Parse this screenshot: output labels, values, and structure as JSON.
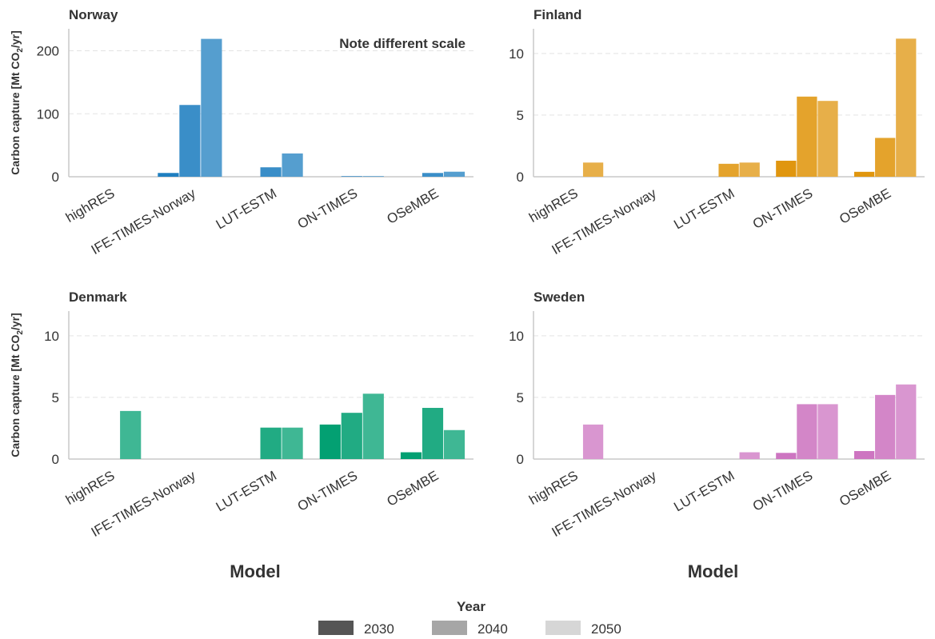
{
  "figure": {
    "xlabel": "Model",
    "ylabel_prefix": "Carbon capture [Mt CO",
    "ylabel_sub": "2",
    "ylabel_suffix": "/yr]",
    "legend_title": "Year",
    "legend_items": [
      "2030",
      "2040",
      "2050"
    ],
    "legend_swatch_colors": [
      "#555555",
      "#a6a6a6",
      "#d6d6d6"
    ],
    "note": "Note different scale"
  },
  "chart_data": [
    {
      "type": "bar",
      "title": "Norway",
      "color": "#1f7fc0",
      "ylim": [
        0,
        235
      ],
      "yticks": [
        "0",
        "100",
        "200"
      ],
      "categories": [
        "highRES",
        "IFE-TIMES-Norway",
        "LUT-ESTM",
        "ON-TIMES",
        "OSeMBE"
      ],
      "series": [
        {
          "name": "2030",
          "values": [
            0,
            6,
            0,
            0,
            0
          ]
        },
        {
          "name": "2040",
          "values": [
            0,
            114,
            15,
            1,
            6
          ]
        },
        {
          "name": "2050",
          "values": [
            0,
            219,
            37,
            1,
            8
          ]
        }
      ],
      "annotation": "Note different scale"
    },
    {
      "type": "bar",
      "title": "Finland",
      "color": "#e0960f",
      "ylim": [
        0,
        12
      ],
      "yticks": [
        "0",
        "5",
        "10"
      ],
      "categories": [
        "highRES",
        "IFE-TIMES-Norway",
        "LUT-ESTM",
        "ON-TIMES",
        "OSeMBE"
      ],
      "series": [
        {
          "name": "2030",
          "values": [
            0,
            0,
            0,
            1.3,
            0.4
          ]
        },
        {
          "name": "2040",
          "values": [
            0,
            0,
            1.05,
            6.5,
            3.15
          ]
        },
        {
          "name": "2050",
          "values": [
            1.15,
            0,
            1.15,
            6.15,
            11.2
          ]
        }
      ]
    },
    {
      "type": "bar",
      "title": "Denmark",
      "color": "#03a072",
      "ylim": [
        0,
        12
      ],
      "yticks": [
        "0",
        "5",
        "10"
      ],
      "categories": [
        "highRES",
        "IFE-TIMES-Norway",
        "LUT-ESTM",
        "ON-TIMES",
        "OSeMBE"
      ],
      "series": [
        {
          "name": "2030",
          "values": [
            0,
            0,
            0,
            2.8,
            0.55
          ]
        },
        {
          "name": "2040",
          "values": [
            0,
            0,
            2.55,
            3.75,
            4.15
          ]
        },
        {
          "name": "2050",
          "values": [
            3.9,
            0,
            2.55,
            5.3,
            2.35
          ]
        }
      ]
    },
    {
      "type": "bar",
      "title": "Sweden",
      "color": "#cd75c1",
      "ylim": [
        0,
        12
      ],
      "yticks": [
        "0",
        "5",
        "10"
      ],
      "categories": [
        "highRES",
        "IFE-TIMES-Norway",
        "LUT-ESTM",
        "ON-TIMES",
        "OSeMBE"
      ],
      "series": [
        {
          "name": "2030",
          "values": [
            0,
            0,
            0,
            0.5,
            0.65
          ]
        },
        {
          "name": "2040",
          "values": [
            0,
            0,
            0,
            4.45,
            5.2
          ]
        },
        {
          "name": "2050",
          "values": [
            2.8,
            0,
            0.55,
            4.45,
            6.05
          ]
        }
      ]
    }
  ]
}
